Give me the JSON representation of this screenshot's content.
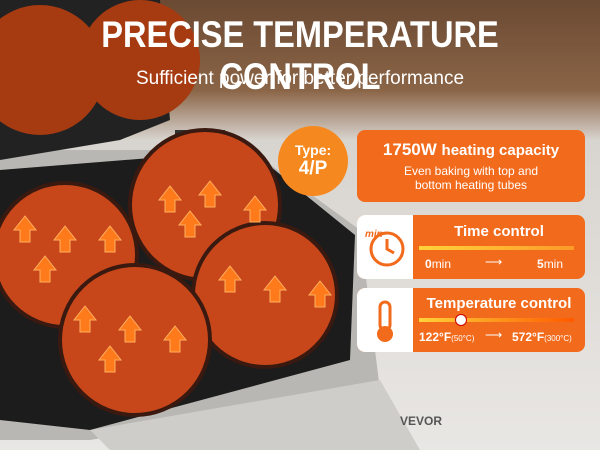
{
  "header": {
    "title": "PRECISE TEMPERATURE CONTROL",
    "subtitle": "Sufficient power for better performance"
  },
  "badge": {
    "label": "Type:",
    "value": "4/P"
  },
  "features": [
    {
      "title": "1750W",
      "title_suffix": "heating capacity",
      "text": "Even baking with top and bottom heating tubes"
    },
    {
      "title": "Time control",
      "icon_text": "min",
      "from": "0",
      "from_unit": "min",
      "to": "5",
      "to_unit": "min"
    },
    {
      "title": "Temperature control",
      "from": "122°F",
      "from_c": "(50°C)",
      "to": "572°F",
      "to_c": "(300°C)"
    }
  ],
  "brand": "VEVOR"
}
